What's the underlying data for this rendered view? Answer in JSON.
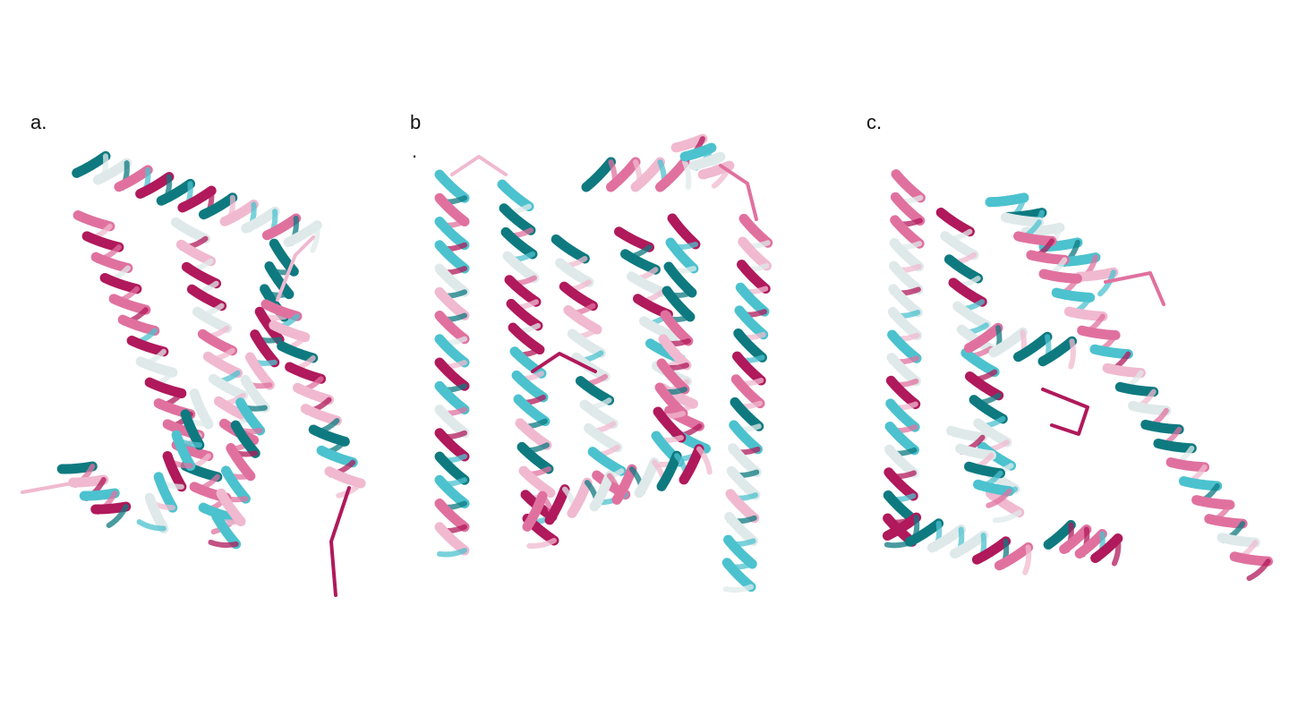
{
  "panels": [
    {
      "id": "a",
      "label": "a."
    },
    {
      "id": "b",
      "label": "b",
      "label_suffix": "."
    },
    {
      "id": "c",
      "label": "c."
    }
  ],
  "colors": {
    "teal_dark": "#0e7a80",
    "teal_light": "#4cc2cf",
    "pale": "#dfe9ea",
    "pink_light": "#f0b9cf",
    "pink": "#e0719f",
    "magenta": "#b0195b"
  },
  "icons": [
    "protein-helix-ribbon"
  ]
}
